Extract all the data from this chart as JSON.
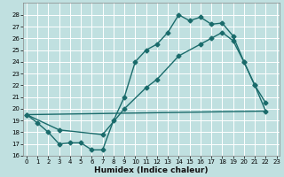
{
  "xlabel": "Humidex (Indice chaleur)",
  "bg_color": "#c0e0e0",
  "grid_color": "#ffffff",
  "line_color": "#1a6b6b",
  "xlim": [
    -0.3,
    23.3
  ],
  "ylim": [
    16,
    29
  ],
  "yticks": [
    16,
    17,
    18,
    19,
    20,
    21,
    22,
    23,
    24,
    25,
    26,
    27,
    28
  ],
  "xticks": [
    0,
    1,
    2,
    3,
    4,
    5,
    6,
    7,
    8,
    9,
    10,
    11,
    12,
    13,
    14,
    15,
    16,
    17,
    18,
    19,
    20,
    21,
    22,
    23
  ],
  "line1_x": [
    0,
    1,
    2,
    3,
    4,
    5,
    6,
    7,
    8,
    9,
    10,
    11,
    12,
    13,
    14,
    15,
    16,
    17,
    18,
    19,
    20,
    21,
    22
  ],
  "line1_y": [
    19.5,
    18.8,
    18.0,
    17.0,
    17.1,
    17.1,
    16.5,
    16.5,
    19.0,
    21.0,
    24.0,
    25.0,
    25.5,
    26.5,
    28.0,
    27.5,
    27.8,
    27.2,
    27.3,
    26.2,
    24.0,
    22.0,
    19.8
  ],
  "line2_x": [
    0,
    22
  ],
  "line2_y": [
    19.5,
    19.8
  ],
  "line3_x": [
    0,
    3,
    7,
    9,
    11,
    12,
    14,
    16,
    17,
    18,
    19,
    20,
    21,
    22
  ],
  "line3_y": [
    19.5,
    18.2,
    17.8,
    20.0,
    21.8,
    22.5,
    24.5,
    25.5,
    26.0,
    26.5,
    25.8,
    24.0,
    22.0,
    20.5
  ],
  "marker": "D",
  "markersize": 2.5,
  "linewidth": 1.0,
  "tick_fontsize": 5.0,
  "xlabel_fontsize": 6.5
}
